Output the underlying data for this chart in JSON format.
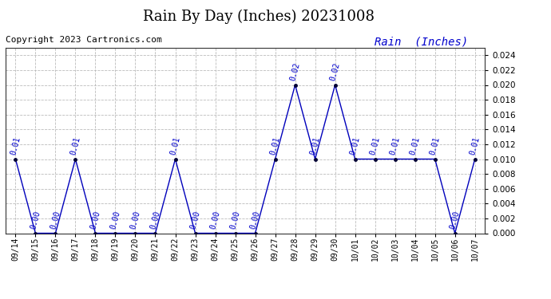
{
  "title": "Rain By Day (Inches) 20231008",
  "copyright": "Copyright 2023 Cartronics.com",
  "legend_label": "Rain  (Inches)",
  "dates": [
    "09/14",
    "09/15",
    "09/16",
    "09/17",
    "09/18",
    "09/19",
    "09/20",
    "09/21",
    "09/22",
    "09/23",
    "09/24",
    "09/25",
    "09/26",
    "09/27",
    "09/28",
    "09/29",
    "09/30",
    "10/01",
    "10/02",
    "10/03",
    "10/04",
    "10/05",
    "10/06",
    "10/07"
  ],
  "values": [
    0.01,
    0.0,
    0.0,
    0.01,
    0.0,
    0.0,
    0.0,
    0.0,
    0.01,
    0.0,
    0.0,
    0.0,
    0.0,
    0.01,
    0.02,
    0.01,
    0.02,
    0.01,
    0.01,
    0.01,
    0.01,
    0.01,
    0.0,
    0.01
  ],
  "line_color": "#0000bb",
  "marker_color": "#000033",
  "label_color": "#0000cc",
  "bg_color": "#ffffff",
  "grid_color": "#bbbbbb",
  "ylim": [
    0.0,
    0.025
  ],
  "ytick_max": 0.024,
  "ytick_step": 0.002,
  "title_fontsize": 13,
  "copyright_fontsize": 8,
  "legend_fontsize": 10,
  "label_fontsize": 7,
  "xtick_fontsize": 7,
  "ytick_fontsize": 7.5
}
